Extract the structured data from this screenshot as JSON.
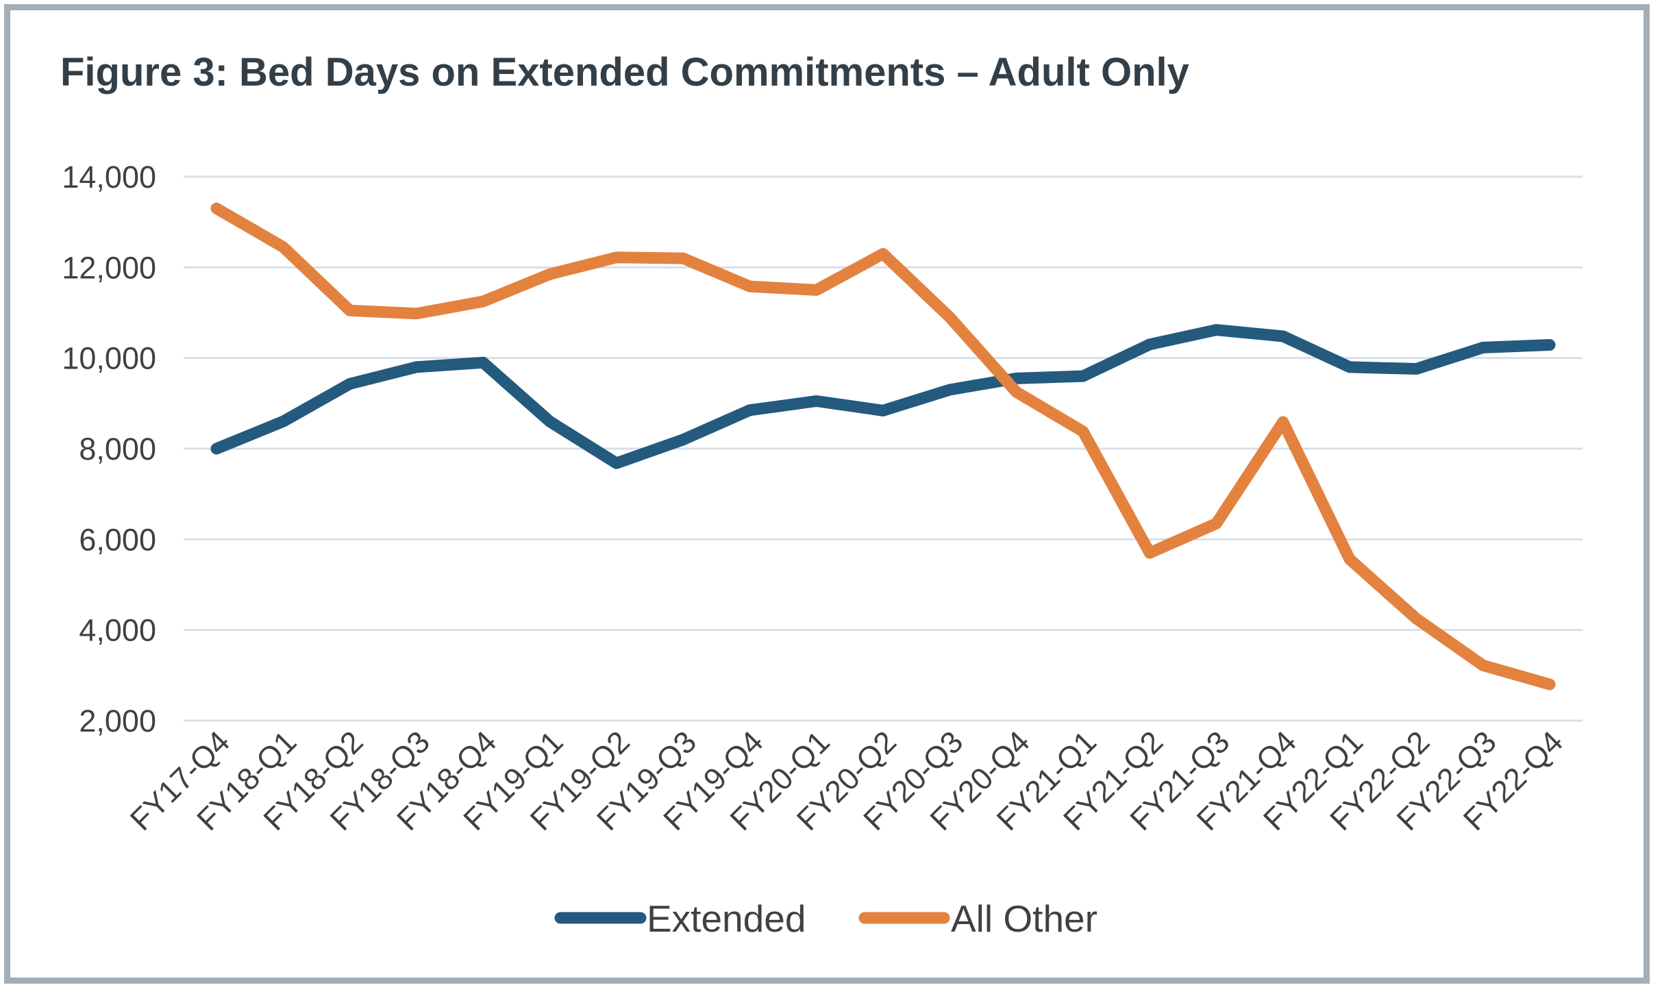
{
  "chart_data": {
    "type": "line",
    "title": "Figure 3: Bed Days on Extended Commitments – Adult Only",
    "xlabel": "",
    "ylabel": "",
    "categories": [
      "FY17-Q4",
      "FY18-Q1",
      "FY18-Q2",
      "FY18-Q3",
      "FY18-Q4",
      "FY19-Q1",
      "FY19-Q2",
      "FY19-Q3",
      "FY19-Q4",
      "FY20-Q1",
      "FY20-Q2",
      "FY20-Q3",
      "FY20-Q4",
      "FY21-Q1",
      "FY21-Q2",
      "FY21-Q3",
      "FY21-Q4",
      "FY22-Q1",
      "FY22-Q2",
      "FY22-Q3",
      "FY22-Q4"
    ],
    "y_ticks": [
      "2,000",
      "4,000",
      "6,000",
      "8,000",
      "10,000",
      "12,000",
      "14,000"
    ],
    "y_tick_values": [
      2000,
      4000,
      6000,
      8000,
      10000,
      12000,
      14000
    ],
    "ylim": [
      2000,
      14000
    ],
    "grid": true,
    "legend_position": "bottom",
    "series": [
      {
        "name": "Extended",
        "color": "#235a7e",
        "values": [
          8000,
          8600,
          9430,
          9800,
          9900,
          8600,
          7680,
          8200,
          8850,
          9050,
          8840,
          9300,
          9550,
          9600,
          10300,
          10620,
          10480,
          9800,
          9760,
          10230,
          10290
        ]
      },
      {
        "name": "All Other",
        "color": "#e3823f",
        "values": [
          13300,
          12450,
          11050,
          10980,
          11250,
          11850,
          12220,
          12200,
          11580,
          11500,
          12300,
          10900,
          9250,
          8380,
          5700,
          6350,
          8590,
          5560,
          4250,
          3220,
          2800
        ]
      }
    ]
  }
}
